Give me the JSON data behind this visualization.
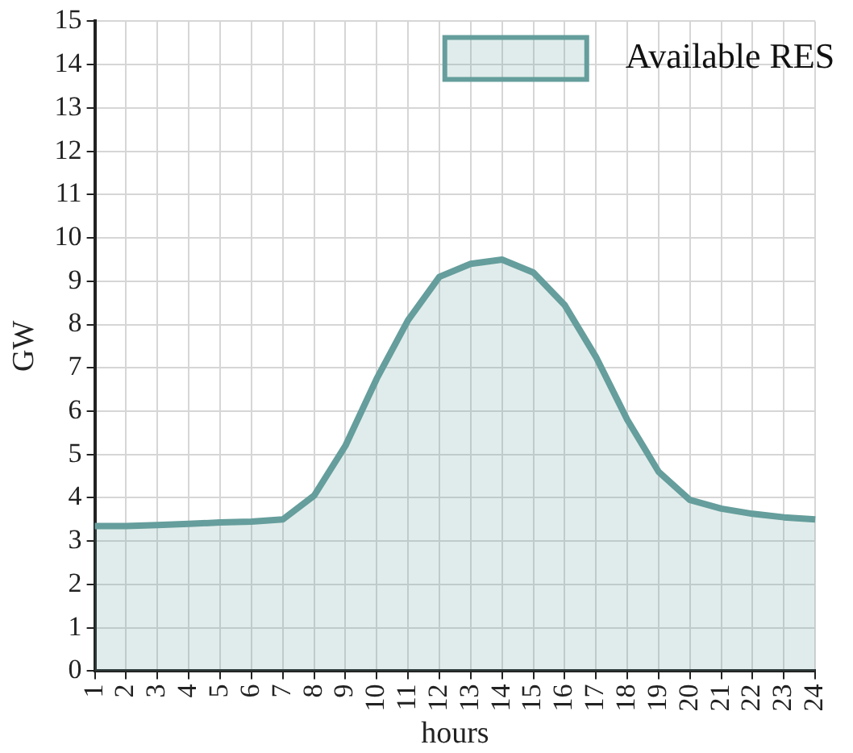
{
  "chart_data": {
    "type": "area",
    "xlabel": "hours",
    "ylabel": "GW",
    "categories": [
      "1",
      "2",
      "3",
      "4",
      "5",
      "6",
      "7",
      "8",
      "9",
      "10",
      "11",
      "12",
      "13",
      "14",
      "15",
      "16",
      "17",
      "18",
      "19",
      "20",
      "21",
      "22",
      "23",
      "24"
    ],
    "series": [
      {
        "name": "Available RES",
        "color": "#659e9c",
        "values": [
          3.35,
          3.35,
          3.37,
          3.4,
          3.43,
          3.45,
          3.5,
          4.05,
          5.2,
          6.75,
          8.1,
          9.1,
          9.4,
          9.5,
          9.2,
          8.45,
          7.25,
          5.8,
          4.6,
          3.95,
          3.75,
          3.63,
          3.55,
          3.5
        ]
      }
    ],
    "ylim": [
      0,
      15
    ],
    "yticks": [
      0,
      1,
      2,
      3,
      4,
      5,
      6,
      7,
      8,
      9,
      10,
      11,
      12,
      13,
      14,
      15
    ],
    "grid": true,
    "legend": "top right"
  }
}
